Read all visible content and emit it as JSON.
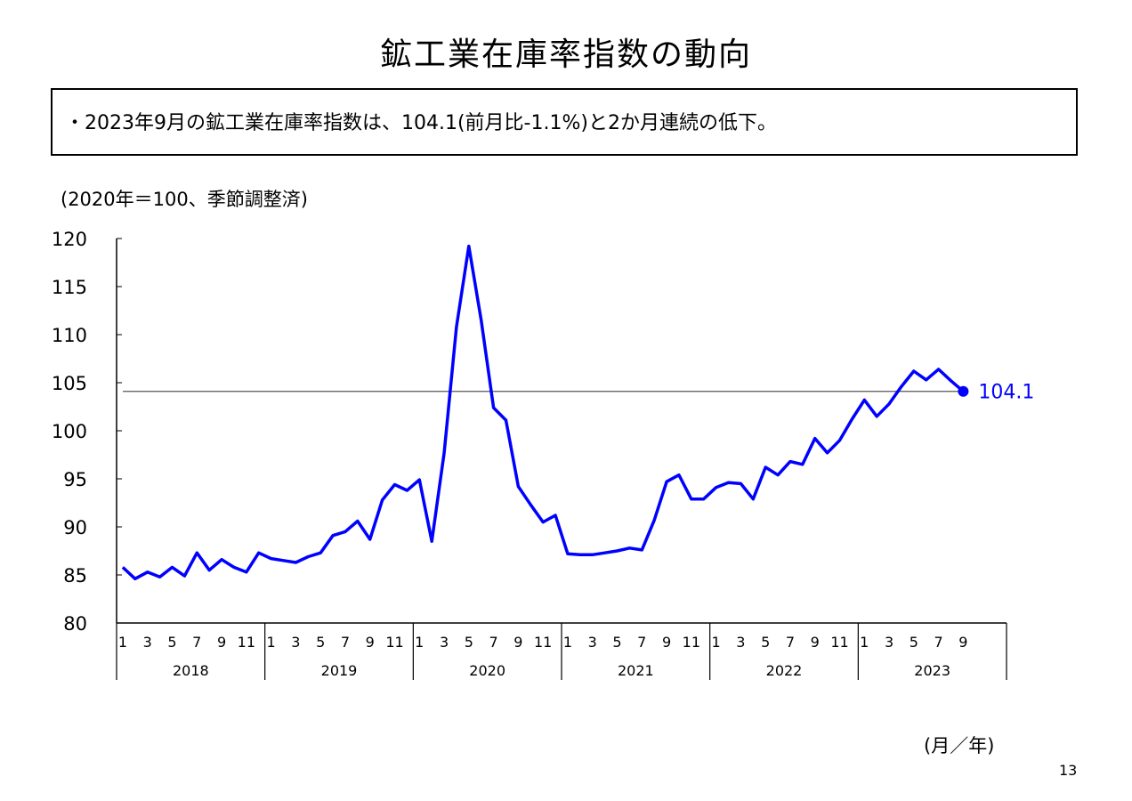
{
  "title": "鉱工業在庫率指数の動向",
  "summary": "・2023年9月の鉱工業在庫率指数は、104.1(前月比-1.1%)と2か月連続の低下。",
  "page_number": "13",
  "colors": {
    "line": "#0000ff",
    "reference": "#555555",
    "axis": "#000000"
  },
  "chart_data": {
    "type": "line",
    "title": "",
    "ylabel": "(2020年＝100、季節調整済)",
    "xlabel": "(月／年)",
    "ylim": [
      80,
      120
    ],
    "yticks": [
      80,
      85,
      90,
      95,
      100,
      105,
      110,
      115,
      120
    ],
    "month_tick_labels": [
      "1",
      "3",
      "5",
      "7",
      "9",
      "11"
    ],
    "years": [
      "2018",
      "2019",
      "2020",
      "2021",
      "2022",
      "2023"
    ],
    "reference_value": 104.1,
    "end_label": "104.1",
    "series": [
      {
        "values": [
          85.8,
          84.6,
          85.3,
          84.8,
          85.8,
          84.9,
          87.3,
          85.5,
          86.6,
          85.8,
          85.3,
          87.3,
          86.7,
          86.5,
          86.3,
          86.9,
          87.3,
          89.1,
          89.5,
          90.6,
          88.7,
          92.8,
          94.4,
          93.8,
          94.9,
          88.5,
          97.7,
          110.8,
          119.2,
          111.5,
          102.4,
          101.1,
          94.2,
          92.3,
          90.5,
          91.2,
          87.2,
          87.1,
          87.1,
          87.3,
          87.5,
          87.8,
          87.6,
          90.7,
          94.7,
          95.4,
          92.9,
          92.9,
          94.1,
          94.6,
          94.5,
          92.9,
          96.2,
          95.4,
          96.8,
          96.5,
          99.2,
          97.7,
          99.0,
          101.2,
          103.2,
          101.5,
          102.8,
          104.6,
          106.2,
          105.3,
          106.4,
          105.2,
          104.1
        ]
      }
    ]
  }
}
